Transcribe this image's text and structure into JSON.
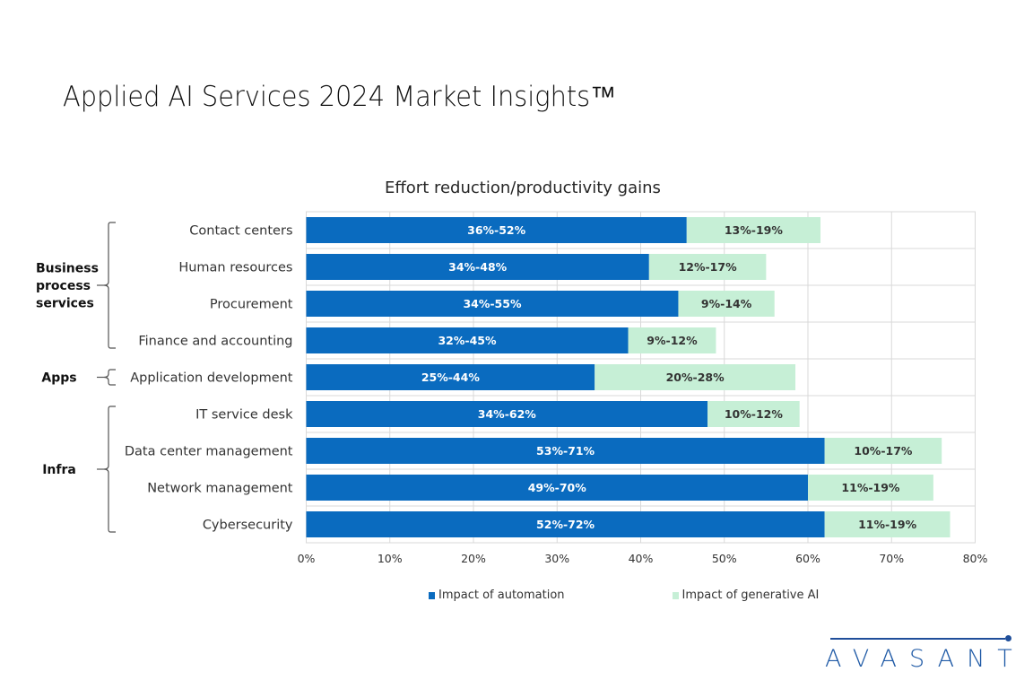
{
  "page": {
    "title": "Applied AI Services 2024 Market Insights™",
    "logo_text": "AVASANT"
  },
  "colors": {
    "automation": "#0a6bbf",
    "generative_ai": "#c6efd6",
    "gridline": "#d9d9d9"
  },
  "chart_data": {
    "type": "bar",
    "orientation": "horizontal",
    "stacked": true,
    "title": "Effort reduction/productivity gains",
    "xlabel": "",
    "ylabel": "",
    "xlim": [
      0,
      80
    ],
    "x_ticks": [
      "0%",
      "10%",
      "20%",
      "30%",
      "40%",
      "50%",
      "60%",
      "70%",
      "80%"
    ],
    "grid": true,
    "legend_position": "bottom",
    "categories": [
      "Contact centers",
      "Human resources",
      "Procurement",
      "Finance and accounting",
      "Application development",
      "IT service desk",
      "Data center management",
      "Network management",
      "Cybersecurity"
    ],
    "series": [
      {
        "name": "Impact of automation",
        "values": [
          45.5,
          41,
          44.5,
          38.5,
          34.5,
          48,
          62,
          60,
          62
        ],
        "labels": [
          "36%-52%",
          "34%-48%",
          "34%-55%",
          "32%-45%",
          "25%-44%",
          "34%-62%",
          "53%-71%",
          "49%-70%",
          "52%-72%"
        ]
      },
      {
        "name": "Impact of generative AI",
        "values": [
          16,
          14,
          11.5,
          10.5,
          24,
          11,
          14,
          15,
          15
        ],
        "labels": [
          "13%-19%",
          "12%-17%",
          "9%-14%",
          "9%-12%",
          "20%-28%",
          "10%-12%",
          "10%-17%",
          "11%-19%",
          "11%-19%"
        ]
      }
    ],
    "groups": [
      {
        "label_lines": [
          "Business",
          "process",
          "services"
        ],
        "first": 0,
        "last": 3
      },
      {
        "label_lines": [
          "Apps"
        ],
        "first": 4,
        "last": 4
      },
      {
        "label_lines": [
          "Infra"
        ],
        "first": 5,
        "last": 8
      }
    ]
  }
}
